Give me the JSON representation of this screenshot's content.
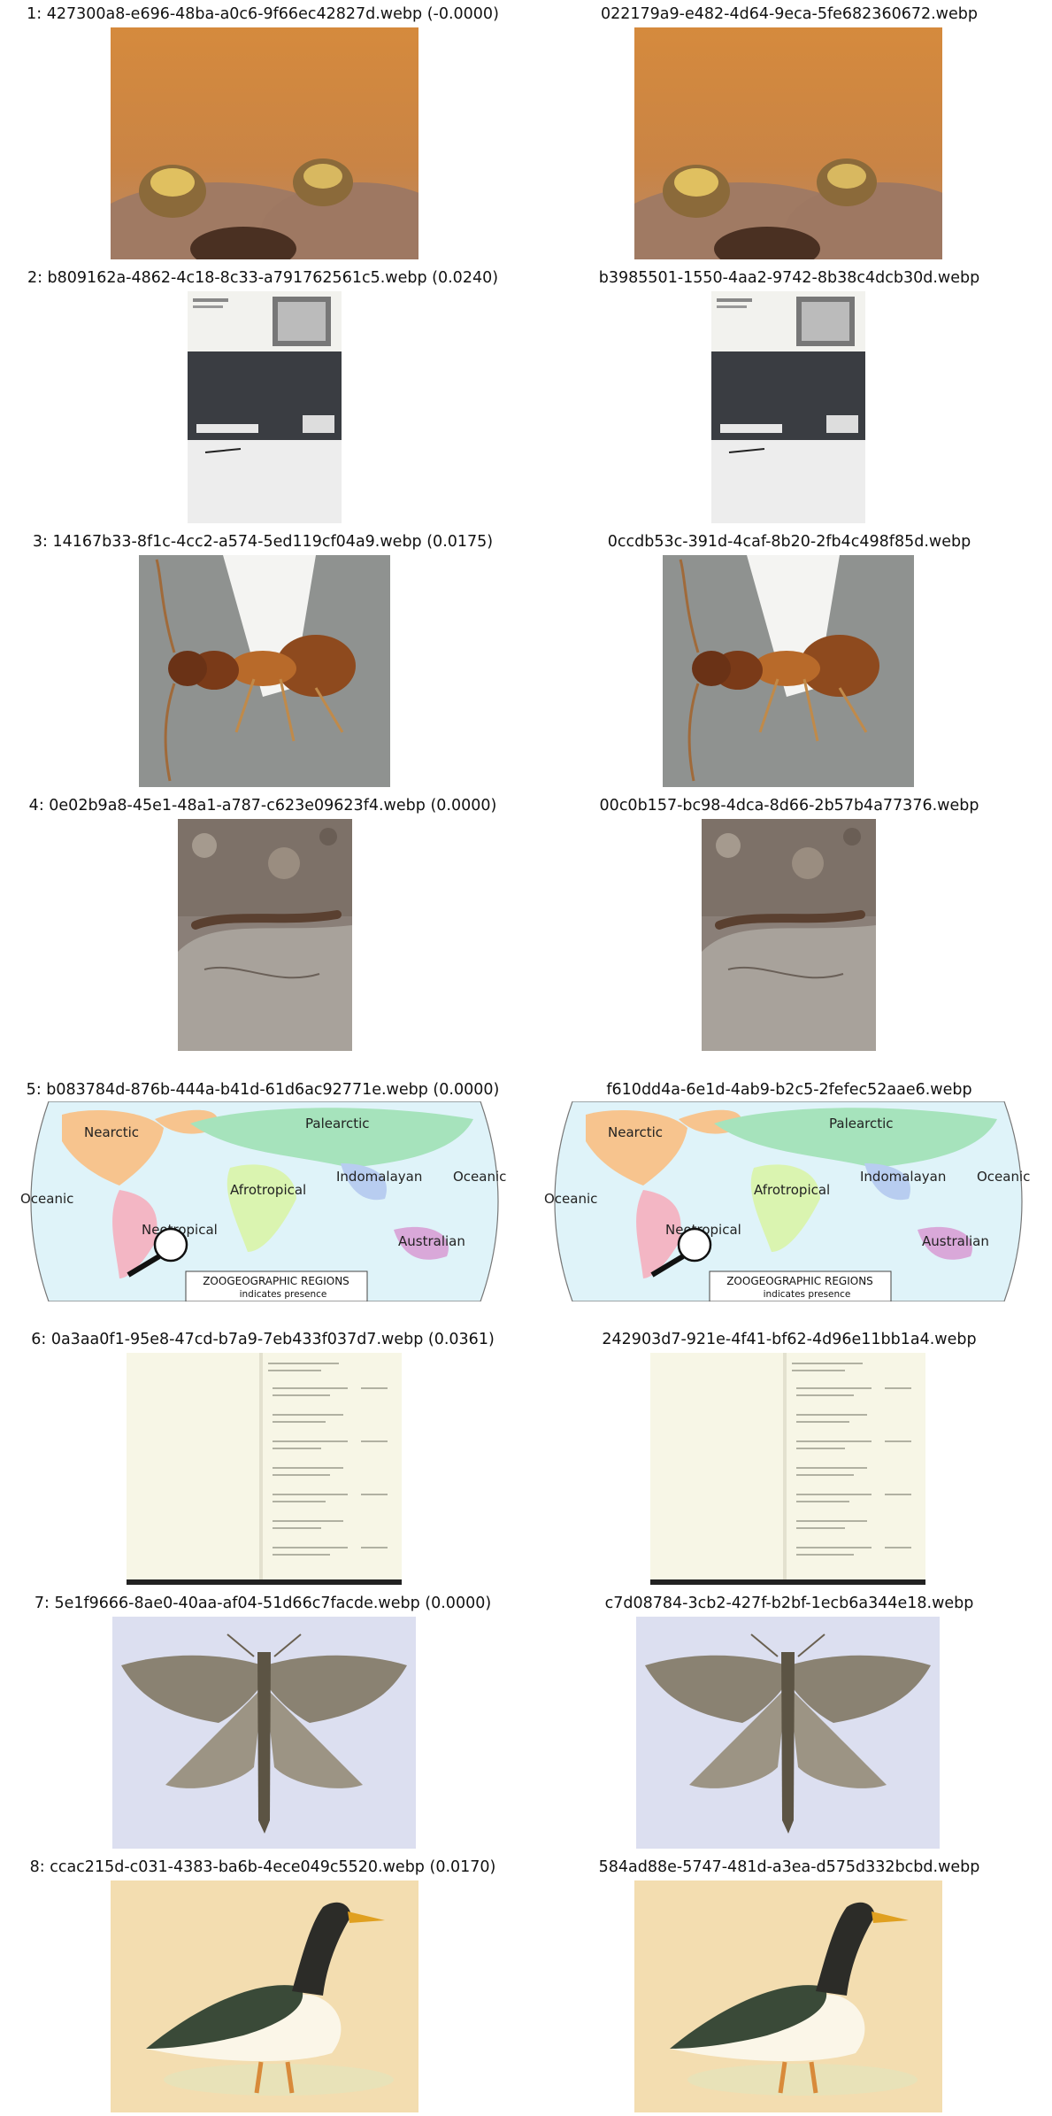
{
  "rows": [
    {
      "index": "1",
      "query": "427300a8-e696-48ba-a0c6-9f66ec42827d.webp",
      "score": "(-0.0000)",
      "match": "022179a9-e482-4d64-9eca-5fe682360672.webp",
      "icon": "frogs-photo-icon"
    },
    {
      "index": "2",
      "query": "b809162a-4862-4c18-8c33-a791762561c5.webp",
      "score": "(0.0240)",
      "match": "b3985501-1550-4aa2-9742-8b38c4dcb30d.webp",
      "icon": "specimen-label-icon"
    },
    {
      "index": "3",
      "query": "14167b33-8f1c-4cc2-a574-5ed119cf04a9.webp",
      "score": "(0.0175)",
      "match": "0ccdb53c-391d-4caf-8b20-2fb4c498f85d.webp",
      "icon": "ant-specimen-icon"
    },
    {
      "index": "4",
      "query": "0e02b9a8-45e1-48a1-a787-c623e09623f4.webp",
      "score": "(0.0000)",
      "match": "00c0b157-bc98-4dca-8d66-2b57b4a77376.webp",
      "icon": "caterpillar-photo-icon"
    },
    {
      "index": "5",
      "query": "b083784d-876b-444a-b41d-61d6ac92771e.webp",
      "score": "(0.0000)",
      "match": "f610dd4a-6e1d-4ab9-b2c5-2fefec52aae6.webp",
      "icon": "zoogeographic-map-icon",
      "map": {
        "regions": [
          "Nearctic",
          "Palearctic",
          "Indomalayan",
          "Oceanic",
          "Oceanic",
          "Afrotropical",
          "Neotropical",
          "Australian"
        ],
        "legend_title": "ZOOGEOGRAPHIC REGIONS",
        "legend_note": "indicates presence"
      }
    },
    {
      "index": "6",
      "query": "0a3aa0f1-95e8-47cd-b7a9-7eb433f037d7.webp",
      "score": "(0.0361)",
      "match": "242903d7-921e-4f41-bf62-4d96e11bb1a4.webp",
      "icon": "ledger-page-icon"
    },
    {
      "index": "7",
      "query": "5e1f9666-8ae0-40aa-af04-51d66c7facde.webp",
      "score": "(0.0000)",
      "match": "c7d08784-3cb2-427f-b2bf-1ecb6a344e18.webp",
      "icon": "moth-specimen-icon"
    },
    {
      "index": "8",
      "query": "ccac215d-c031-4383-ba6b-4ece049c5520.webp",
      "score": "(0.0170)",
      "match": "584ad88e-5747-481d-a3ea-d575d332bcbd.webp",
      "icon": "goose-illustration-icon"
    }
  ]
}
